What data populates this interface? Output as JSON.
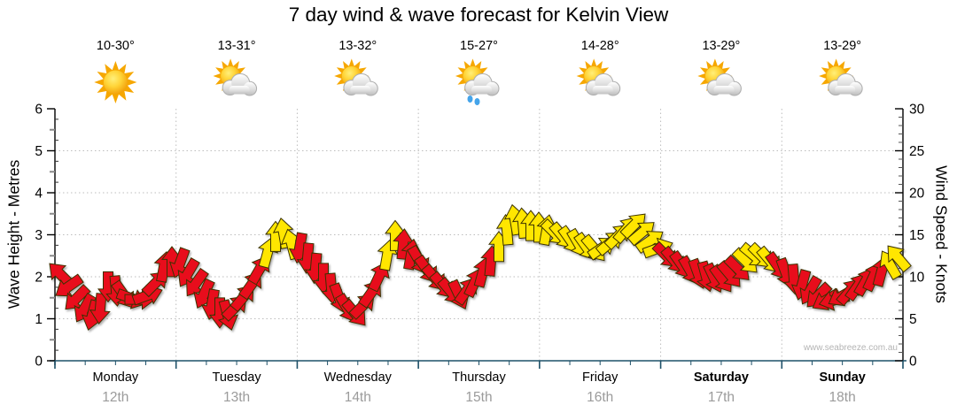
{
  "title": "7 day wind & wave forecast for Kelvin View",
  "watermark": "www.seabreeze.com.au",
  "days": [
    {
      "name": "Monday",
      "date": "12th",
      "temp": "10-30°",
      "icon": "sunny",
      "bold": false
    },
    {
      "name": "Tuesday",
      "date": "13th",
      "temp": "13-31°",
      "icon": "partly-cloudy",
      "bold": false
    },
    {
      "name": "Wednesday",
      "date": "14th",
      "temp": "13-32°",
      "icon": "partly-cloudy",
      "bold": false
    },
    {
      "name": "Thursday",
      "date": "15th",
      "temp": "15-27°",
      "icon": "showers",
      "bold": false
    },
    {
      "name": "Friday",
      "date": "16th",
      "temp": "14-28°",
      "icon": "partly-cloudy",
      "bold": false
    },
    {
      "name": "Saturday",
      "date": "17th",
      "temp": "13-29°",
      "icon": "partly-cloudy",
      "bold": true
    },
    {
      "name": "Sunday",
      "date": "18th",
      "temp": "13-29°",
      "icon": "partly-cloudy",
      "bold": true
    }
  ],
  "axes": {
    "left": {
      "label": "Wave Height - Metres",
      "ticks": [
        0,
        1,
        2,
        3,
        4,
        5,
        6
      ],
      "max": 6
    },
    "right": {
      "label": "Wind Speed - Knots",
      "ticks": [
        0,
        5,
        10,
        15,
        20,
        25,
        30
      ],
      "max": 30
    }
  },
  "colors": {
    "arrow_red": "#e8101c",
    "arrow_yellow": "#ffe600",
    "arrow_outline": "#3a3200",
    "grid": "#bdbdbd",
    "axis": "#000000",
    "x_axis": "#1d5068",
    "date_text": "#9b9b9b",
    "watermark_text": "#b4b4b4",
    "sun_ray": "#f6a700",
    "rain_drop": "#44a4ea"
  },
  "chart_data": {
    "type": "wind-arrows",
    "x_axis": "time (Mon 12th - Sun 18th, left axis Wave Height Metres 0-6, right axis Wind Speed Knots 0-30)",
    "arrow_format": [
      "x_px",
      "knots",
      "direction_deg_pointing_to",
      "color_0red_1yellow"
    ],
    "arrows": [
      [
        68,
        10.3,
        315,
        0
      ],
      [
        77,
        8.8,
        235,
        0
      ],
      [
        86,
        7.4,
        225,
        0
      ],
      [
        95,
        6.2,
        210,
        0
      ],
      [
        104,
        5.4,
        195,
        0
      ],
      [
        113,
        6.2,
        185,
        0
      ],
      [
        122,
        8.8,
        180,
        0
      ],
      [
        131,
        8.3,
        175,
        0
      ],
      [
        140,
        7.8,
        145,
        0
      ],
      [
        149,
        7.4,
        110,
        0
      ],
      [
        158,
        7.3,
        90,
        0
      ],
      [
        167,
        7.8,
        70,
        0
      ],
      [
        176,
        9.3,
        45,
        0
      ],
      [
        185,
        11.2,
        10,
        0
      ],
      [
        194,
        11.8,
        0,
        0
      ],
      [
        203,
        11.6,
        200,
        0
      ],
      [
        212,
        10.4,
        210,
        0
      ],
      [
        221,
        9.2,
        215,
        0
      ],
      [
        230,
        7.9,
        205,
        0
      ],
      [
        239,
        6.7,
        190,
        0
      ],
      [
        248,
        5.7,
        180,
        0
      ],
      [
        257,
        5.4,
        165,
        0
      ],
      [
        266,
        6.4,
        45,
        0
      ],
      [
        275,
        7.6,
        40,
        0
      ],
      [
        284,
        9.1,
        35,
        0
      ],
      [
        293,
        10.9,
        30,
        0
      ],
      [
        302,
        12.9,
        15,
        1
      ],
      [
        311,
        14.8,
        0,
        1
      ],
      [
        320,
        15.2,
        350,
        1
      ],
      [
        329,
        13.9,
        345,
        1
      ],
      [
        338,
        13.4,
        190,
        0
      ],
      [
        347,
        12.2,
        185,
        0
      ],
      [
        356,
        11.0,
        185,
        0
      ],
      [
        365,
        9.8,
        180,
        0
      ],
      [
        374,
        8.6,
        175,
        0
      ],
      [
        383,
        7.4,
        160,
        0
      ],
      [
        392,
        6.2,
        150,
        0
      ],
      [
        401,
        5.6,
        140,
        0
      ],
      [
        410,
        6.6,
        45,
        0
      ],
      [
        419,
        8.1,
        35,
        0
      ],
      [
        428,
        10.1,
        25,
        0
      ],
      [
        437,
        12.6,
        10,
        1
      ],
      [
        446,
        14.9,
        0,
        1
      ],
      [
        455,
        13.9,
        5,
        0
      ],
      [
        464,
        12.7,
        10,
        0
      ],
      [
        473,
        11.9,
        150,
        0
      ],
      [
        482,
        10.8,
        145,
        0
      ],
      [
        491,
        9.8,
        140,
        0
      ],
      [
        500,
        8.9,
        140,
        0
      ],
      [
        509,
        8.2,
        140,
        0
      ],
      [
        518,
        7.8,
        155,
        0
      ],
      [
        527,
        8.4,
        35,
        0
      ],
      [
        536,
        9.4,
        25,
        0
      ],
      [
        545,
        10.6,
        15,
        0
      ],
      [
        554,
        11.9,
        5,
        0
      ],
      [
        563,
        13.6,
        0,
        1
      ],
      [
        572,
        15.6,
        355,
        1
      ],
      [
        581,
        16.8,
        350,
        1
      ],
      [
        590,
        16.4,
        355,
        1
      ],
      [
        599,
        16.1,
        0,
        1
      ],
      [
        608,
        15.9,
        0,
        1
      ],
      [
        617,
        15.6,
        10,
        1
      ],
      [
        626,
        15.2,
        135,
        1
      ],
      [
        635,
        14.8,
        140,
        1
      ],
      [
        644,
        14.3,
        145,
        1
      ],
      [
        653,
        13.9,
        150,
        1
      ],
      [
        662,
        13.5,
        145,
        1
      ],
      [
        671,
        13.3,
        140,
        1
      ],
      [
        680,
        13.5,
        55,
        1
      ],
      [
        689,
        14.1,
        50,
        1
      ],
      [
        698,
        14.9,
        45,
        1
      ],
      [
        707,
        15.7,
        40,
        1
      ],
      [
        716,
        16.2,
        45,
        1
      ],
      [
        725,
        15.3,
        50,
        1
      ],
      [
        734,
        14.3,
        55,
        1
      ],
      [
        743,
        13.4,
        70,
        1
      ],
      [
        752,
        12.5,
        135,
        0
      ],
      [
        761,
        11.9,
        140,
        0
      ],
      [
        770,
        11.3,
        145,
        0
      ],
      [
        779,
        10.7,
        150,
        0
      ],
      [
        788,
        10.3,
        160,
        0
      ],
      [
        797,
        10.0,
        165,
        0
      ],
      [
        806,
        9.8,
        155,
        0
      ],
      [
        815,
        9.7,
        145,
        0
      ],
      [
        824,
        10.2,
        140,
        0
      ],
      [
        833,
        10.9,
        135,
        0
      ],
      [
        842,
        11.8,
        135,
        1
      ],
      [
        851,
        12.5,
        130,
        1
      ],
      [
        860,
        12.4,
        135,
        1
      ],
      [
        869,
        11.9,
        140,
        1
      ],
      [
        878,
        11.2,
        145,
        0
      ],
      [
        887,
        10.4,
        160,
        0
      ],
      [
        896,
        9.7,
        175,
        0
      ],
      [
        905,
        9.0,
        195,
        0
      ],
      [
        914,
        8.3,
        210,
        0
      ],
      [
        923,
        7.7,
        225,
        0
      ],
      [
        932,
        7.2,
        240,
        0
      ],
      [
        941,
        7.2,
        255,
        0
      ],
      [
        950,
        7.7,
        240,
        0
      ],
      [
        959,
        8.3,
        40,
        0
      ],
      [
        968,
        8.9,
        35,
        0
      ],
      [
        977,
        9.5,
        30,
        0
      ],
      [
        986,
        10.1,
        25,
        0
      ],
      [
        995,
        10.7,
        15,
        0
      ],
      [
        1004,
        11.5,
        330,
        1
      ],
      [
        1013,
        12.3,
        320,
        1
      ]
    ]
  }
}
